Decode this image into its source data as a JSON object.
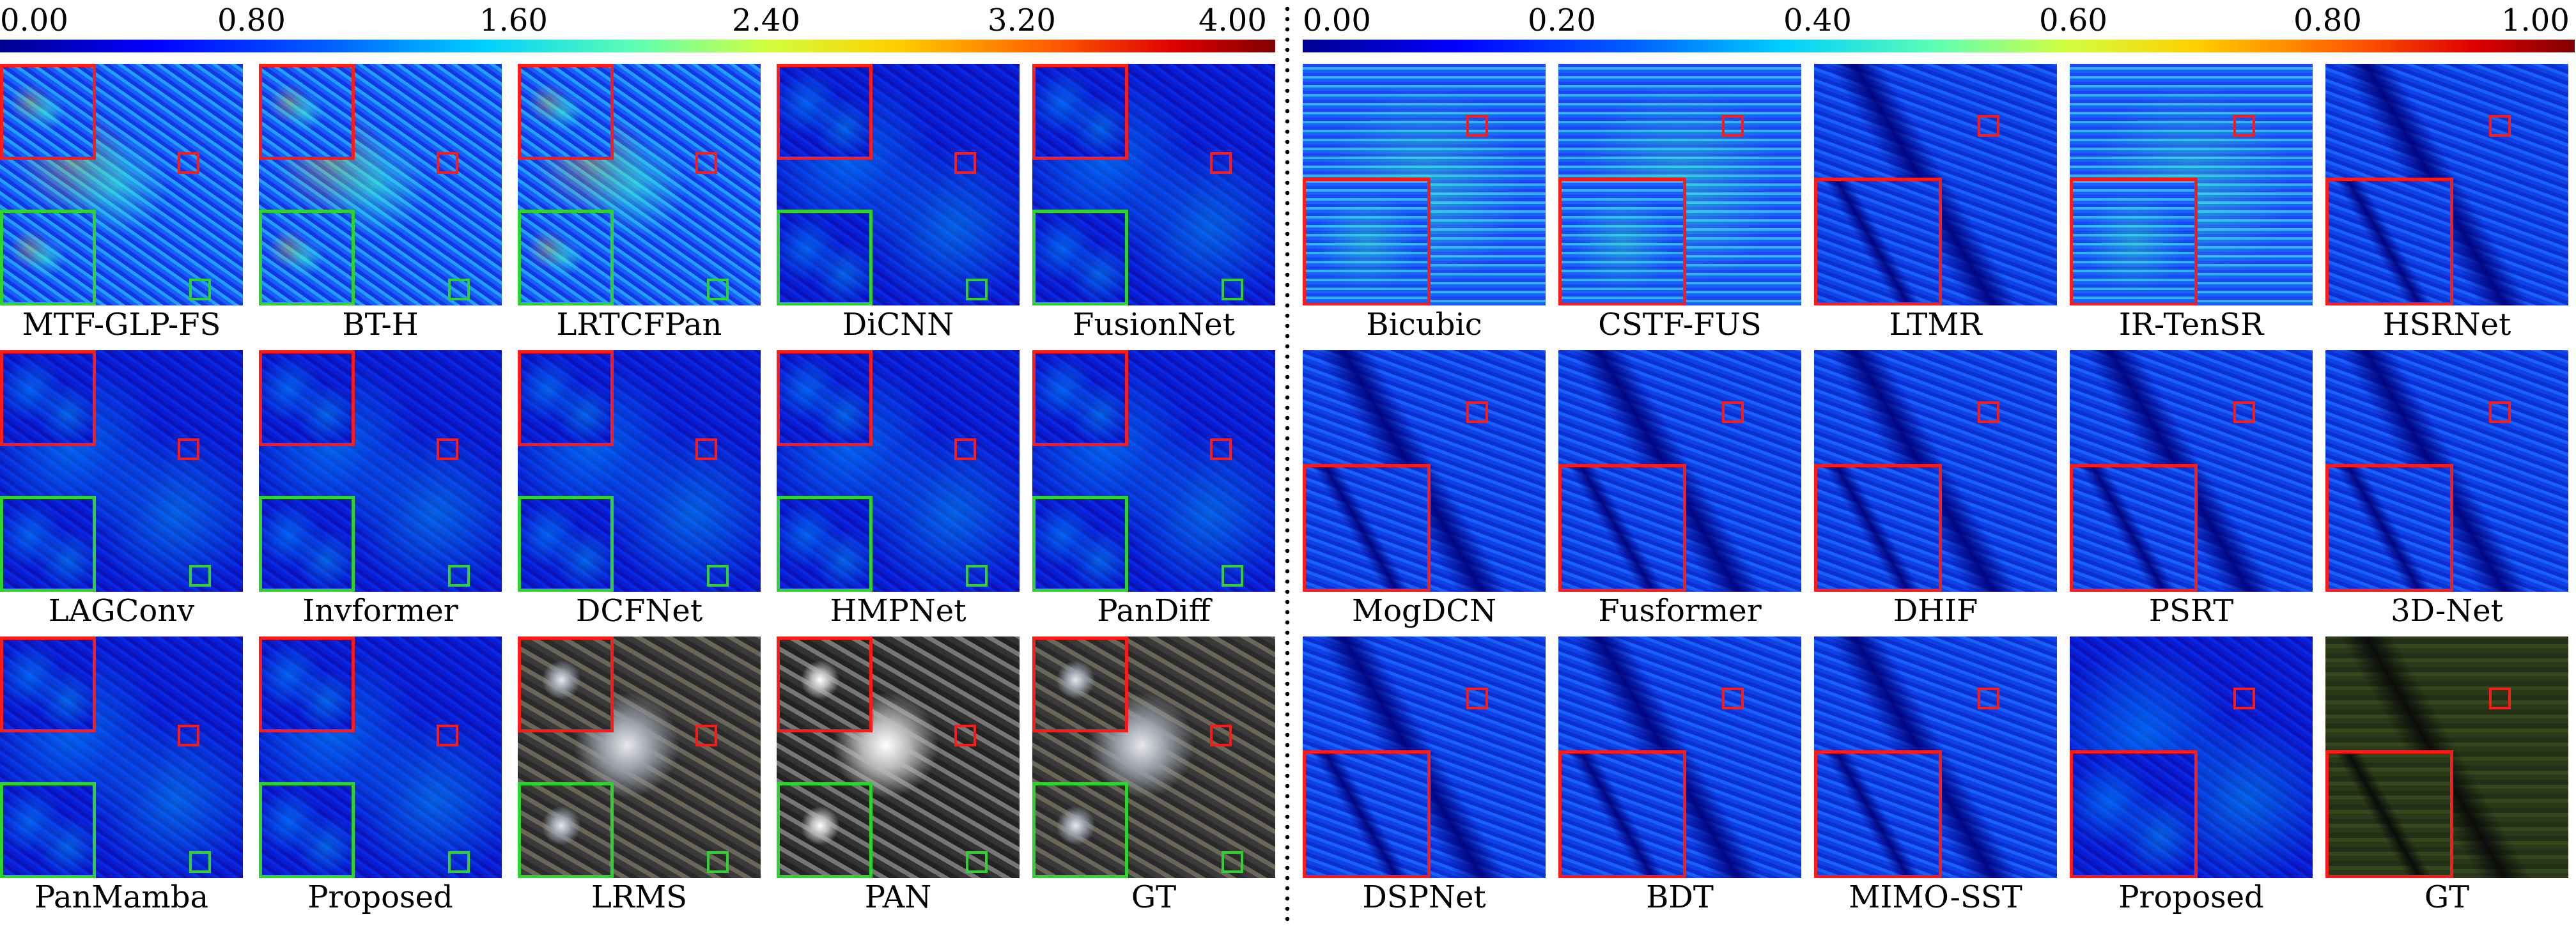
{
  "left_colorbar": {
    "ticks": [
      "0.00",
      "0.80",
      "1.60",
      "2.40",
      "3.20",
      "4.00"
    ]
  },
  "right_colorbar": {
    "ticks": [
      "0.00",
      "0.20",
      "0.40",
      "0.60",
      "0.80",
      "1.00"
    ]
  },
  "left_labels": [
    "MTF-GLP-FS",
    "BT-H",
    "LRTCFPan",
    "DiCNN",
    "FusionNet",
    "LAGConv",
    "Invformer",
    "DCFNet",
    "HMPNet",
    "PanDiff",
    "PanMamba",
    "Proposed",
    "LRMS",
    "PAN",
    "GT"
  ],
  "right_labels": [
    "Bicubic",
    "CSTF-FUS",
    "LTMR",
    "IR-TenSR",
    "HSRNet",
    "MogDCN",
    "Fusformer",
    "DHIF",
    "PSRT",
    "3D-Net",
    "DSPNet",
    "BDT",
    "MIMO-SST",
    "Proposed",
    "GT"
  ],
  "colors": {
    "red_box": "#ff1a1a",
    "green_box": "#2fd22f"
  }
}
